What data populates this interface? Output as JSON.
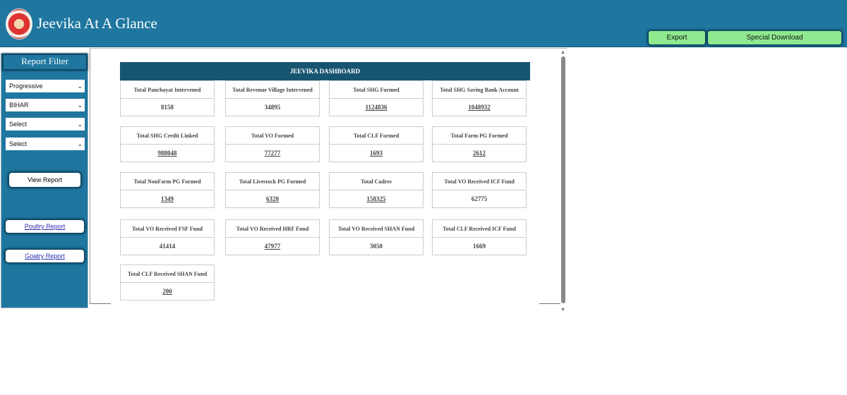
{
  "header": {
    "title": "Jeevika At A Glance",
    "export_label": "Export",
    "special_download_label": "Special Download"
  },
  "sidebar": {
    "title": "Report Filter",
    "selects": [
      "Progressive",
      "BIHAR",
      "Select",
      "Select"
    ],
    "view_report": "View Report",
    "poultry_report": "Poultry Report",
    "goatry_report": "Goatry Report"
  },
  "dashboard": {
    "title": "JEEVIKA DASHBOARD",
    "cards": [
      {
        "label": "Total Panchayat Intervened",
        "value": "8158",
        "link": false
      },
      {
        "label": "Total Revenue Village Intervened",
        "value": "34895",
        "link": false
      },
      {
        "label": "Total SHG Formed",
        "value": "1124836",
        "link": true
      },
      {
        "label": "Total SHG Saving Bank Account",
        "value": "1048932",
        "link": true
      },
      {
        "label": "Total SHG Credit Linked",
        "value": "988048",
        "link": true
      },
      {
        "label": "Total VO Formed",
        "value": "77277",
        "link": true
      },
      {
        "label": "Total CLF Formed",
        "value": "1693",
        "link": true
      },
      {
        "label": "Total Farm PG Formed",
        "value": "2612",
        "link": true
      },
      {
        "label": "Total NonFarm PG Formed",
        "value": "1349",
        "link": true
      },
      {
        "label": "Total Livestock PG Formed",
        "value": "6320",
        "link": true
      },
      {
        "label": "Total Cadres",
        "value": "158325",
        "link": true
      },
      {
        "label": "Total VO Received ICF Fund",
        "value": "62775",
        "link": false
      },
      {
        "label": "Total VO Received FSF Fund",
        "value": "41414",
        "link": false
      },
      {
        "label": "Total VO Received HRF Fund",
        "value": "47977",
        "link": true
      },
      {
        "label": "Total VO Received SHAN Fund",
        "value": "3050",
        "link": false
      },
      {
        "label": "Total CLF Received ICF Fund",
        "value": "1669",
        "link": false
      },
      {
        "label": "Total CLF Received SHAN Fund",
        "value": "200",
        "link": true
      }
    ]
  },
  "colors": {
    "header": "#1f77a0",
    "dashboard_header": "#175470",
    "button": "#8fe98f"
  }
}
